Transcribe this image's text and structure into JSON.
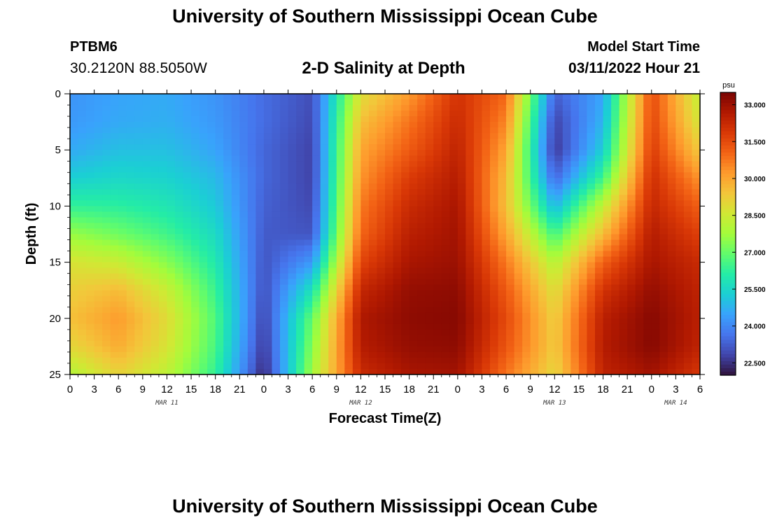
{
  "header": {
    "title": "University of Southern Mississippi Ocean Cube",
    "station_id": "PTBM6",
    "coordinates": "30.2120N  88.5050W",
    "subtitle": "2-D Salinity at Depth",
    "model_start_label": "Model Start Time",
    "model_start_value": "03/11/2022 Hour 21"
  },
  "footer": {
    "title": "University of Southern Mississippi Ocean Cube"
  },
  "chart_data": {
    "type": "heatmap",
    "title": "2-D Salinity at Depth",
    "xlabel": "Forecast Time(Z)",
    "ylabel": "Depth (ft)",
    "x_unit": "hours",
    "xlim": [
      0,
      78
    ],
    "ylim": [
      0,
      25
    ],
    "y_inverted": true,
    "x_tick_values": [
      0,
      3,
      6,
      9,
      12,
      15,
      18,
      21,
      24,
      27,
      30,
      33,
      36,
      39,
      42,
      45,
      48,
      51,
      54,
      57,
      60,
      63,
      66,
      69,
      72,
      75,
      78
    ],
    "x_tick_labels": [
      "0",
      "3",
      "6",
      "9",
      "12",
      "15",
      "18",
      "21",
      "0",
      "3",
      "6",
      "9",
      "12",
      "15",
      "18",
      "21",
      "0",
      "3",
      "6",
      "9",
      "12",
      "15",
      "18",
      "21",
      "0",
      "3",
      "6"
    ],
    "date_labels": [
      {
        "text": "MAR 11",
        "x": 12
      },
      {
        "text": "MAR 12",
        "x": 36
      },
      {
        "text": "MAR 13",
        "x": 60
      },
      {
        "text": "MAR 14",
        "x": 75
      }
    ],
    "y_tick_values": [
      0,
      5,
      10,
      15,
      20,
      25
    ],
    "y_tick_labels": [
      "0",
      "5",
      "10",
      "15",
      "20",
      "25"
    ],
    "colorbar": {
      "unit": "psu",
      "min": 22.0,
      "max": 33.5,
      "labels": [
        "33.000",
        "31.500",
        "30.000",
        "28.500",
        "27.000",
        "25.500",
        "24.000",
        "22.500"
      ],
      "label_values": [
        33.0,
        31.5,
        30.0,
        28.5,
        27.0,
        25.5,
        24.0,
        22.5
      ],
      "colors": [
        "#30123b",
        "#4145ab",
        "#4675ed",
        "#39a2fc",
        "#1bcfd4",
        "#24eca6",
        "#61fc6c",
        "#a4fc3b",
        "#d1e834",
        "#f3c63a",
        "#fe9b2d",
        "#f36315",
        "#d93806",
        "#b11901",
        "#7a0403"
      ]
    },
    "depth_levels": [
      0,
      2.5,
      5,
      7.5,
      10,
      12.5,
      15,
      17.5,
      20,
      22.5,
      25
    ],
    "time_steps": [
      0,
      6,
      12,
      18,
      24,
      30,
      36,
      42,
      48,
      54,
      60,
      66,
      72,
      78
    ],
    "salinity": [
      [
        24.2,
        24.5,
        24.6,
        24.2,
        23.5,
        23.0,
        28.8,
        30.2,
        32.0,
        31.0,
        23.3,
        24.5,
        31.5,
        28.2
      ],
      [
        24.3,
        24.6,
        24.7,
        24.3,
        23.5,
        22.9,
        29.5,
        30.8,
        32.2,
        30.5,
        22.8,
        24.8,
        31.6,
        28.6
      ],
      [
        24.6,
        25.0,
        25.0,
        24.5,
        23.4,
        22.8,
        30.0,
        31.2,
        32.4,
        30.0,
        22.6,
        25.3,
        31.8,
        29.3
      ],
      [
        25.3,
        25.5,
        25.4,
        24.9,
        23.4,
        22.8,
        30.3,
        31.8,
        32.6,
        29.6,
        23.4,
        26.5,
        32.1,
        30.3
      ],
      [
        26.3,
        26.2,
        25.9,
        25.2,
        23.3,
        22.9,
        30.7,
        32.2,
        32.8,
        29.5,
        24.8,
        28.3,
        32.3,
        31.1
      ],
      [
        27.6,
        27.1,
        26.5,
        25.6,
        23.2,
        23.1,
        31.0,
        32.5,
        32.9,
        30.0,
        26.5,
        29.6,
        32.6,
        31.7
      ],
      [
        28.7,
        28.4,
        27.4,
        26.0,
        23.1,
        24.3,
        31.6,
        32.8,
        33.0,
        30.7,
        28.0,
        31.1,
        32.8,
        32.2
      ],
      [
        29.2,
        29.6,
        28.4,
        26.4,
        23.0,
        25.8,
        32.3,
        33.1,
        33.2,
        31.2,
        28.8,
        32.0,
        33.1,
        32.4
      ],
      [
        29.5,
        30.2,
        28.9,
        26.7,
        22.8,
        27.0,
        32.7,
        33.2,
        33.3,
        31.5,
        29.2,
        32.5,
        33.3,
        32.5
      ],
      [
        29.0,
        29.9,
        28.7,
        26.6,
        22.6,
        27.4,
        32.6,
        33.1,
        33.2,
        31.3,
        29.3,
        32.6,
        33.3,
        32.4
      ],
      [
        28.0,
        29.1,
        28.2,
        26.3,
        22.3,
        27.8,
        32.2,
        32.8,
        32.9,
        30.8,
        29.0,
        32.4,
        32.9,
        31.9
      ]
    ]
  }
}
